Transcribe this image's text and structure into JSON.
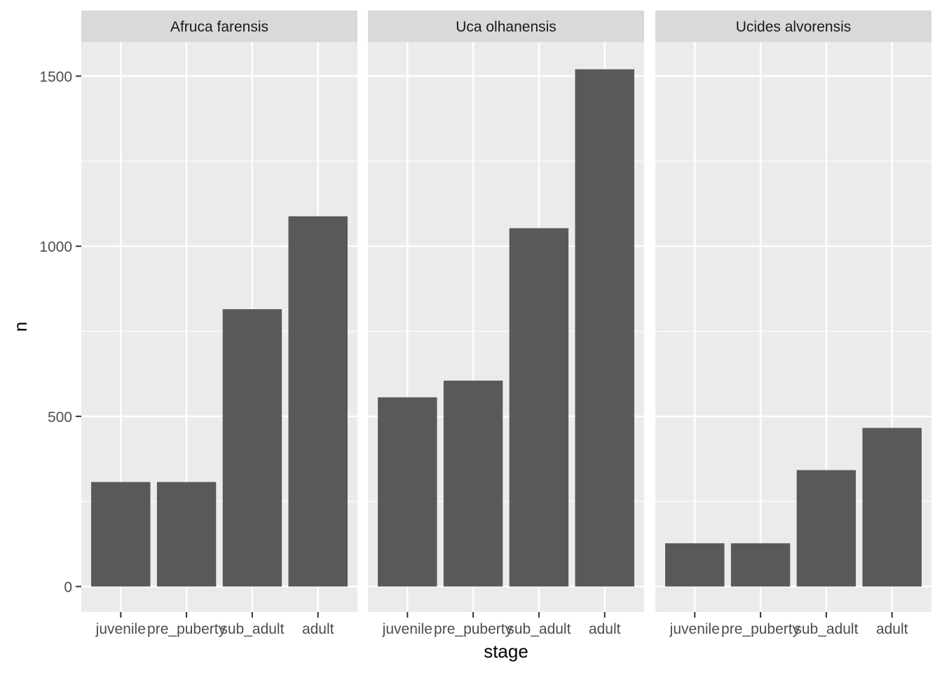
{
  "chart_data": {
    "type": "bar",
    "facet_by": "species",
    "xlabel": "stage",
    "ylabel": "n",
    "categories": [
      "juvenile",
      "pre_puberty",
      "sub_adult",
      "adult"
    ],
    "ylim": [
      -75,
      1600
    ],
    "yticks": [
      0,
      500,
      1000,
      1500
    ],
    "grid": true,
    "bar_color": "#595959",
    "panel_background": "#ebebeb",
    "strip_background": "#d9d9d9",
    "facets": [
      {
        "name": "Afruca farensis",
        "values": [
          307,
          307,
          815,
          1088
        ]
      },
      {
        "name": "Uca olhanensis",
        "values": [
          556,
          605,
          1053,
          1520
        ]
      },
      {
        "name": "Ucides alvorensis",
        "values": [
          127,
          127,
          342,
          466
        ]
      }
    ]
  }
}
